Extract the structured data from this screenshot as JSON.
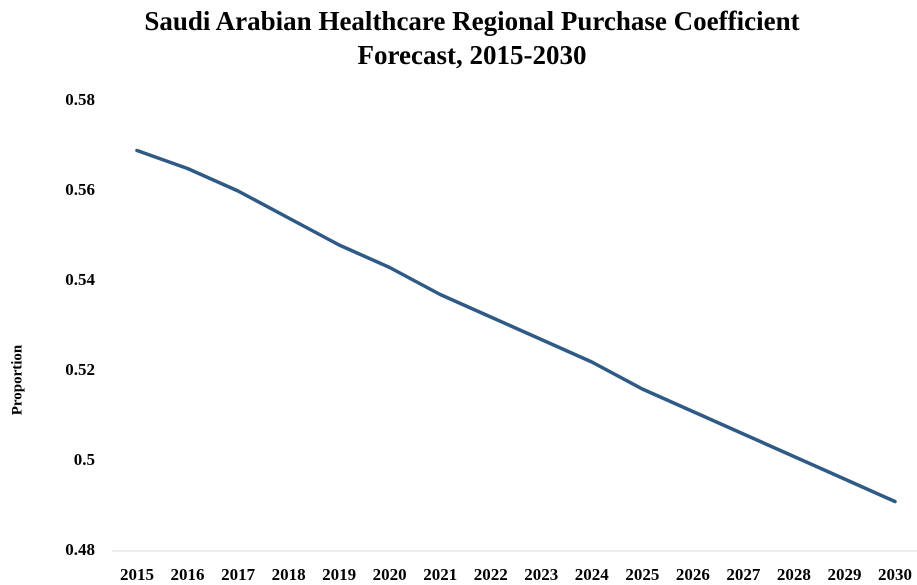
{
  "chart_data": {
    "type": "line",
    "title": [
      "Saudi Arabian Healthcare Regional Purchase Coefficient",
      "Forecast, 2015-2030"
    ],
    "ylabel": "Proportion",
    "categories": [
      "2015",
      "2016",
      "2017",
      "2018",
      "2019",
      "2020",
      "2021",
      "2022",
      "2023",
      "2024",
      "2025",
      "2026",
      "2027",
      "2028",
      "2029",
      "2030"
    ],
    "series": [
      {
        "color": "#2f5a85",
        "values": [
          0.569,
          0.565,
          0.56,
          0.554,
          0.548,
          0.543,
          0.537,
          0.532,
          0.527,
          0.522,
          0.516,
          0.511,
          0.506,
          0.501,
          0.496,
          0.491
        ]
      }
    ],
    "ylim": [
      0.48,
      0.58
    ],
    "yticks": [
      0.48,
      0.5,
      0.52,
      0.54,
      0.56,
      0.58
    ],
    "grid": false
  }
}
